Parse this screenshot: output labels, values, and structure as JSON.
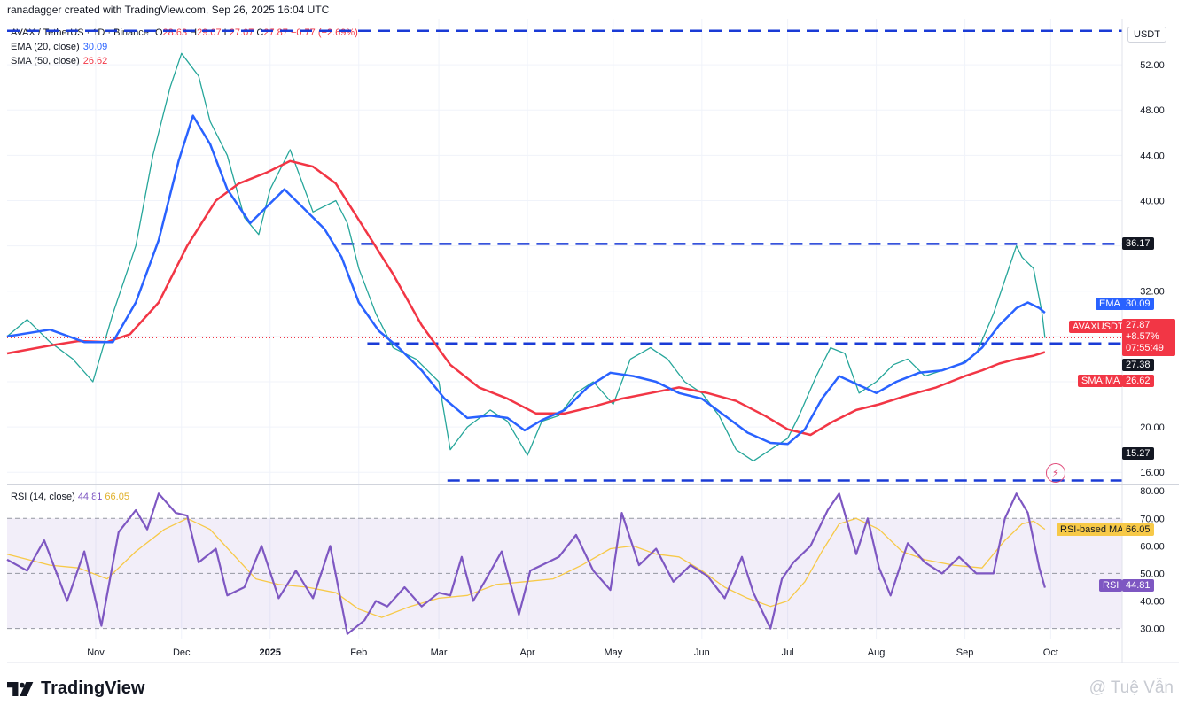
{
  "header": {
    "created_by": "ranadagger created with TradingView.com, Sep 26, 2025 16:04 UTC"
  },
  "symbol_legend": {
    "title": "AVAX / TetherUS · 1D · Binance",
    "o_label": "O",
    "o_value": "28.63",
    "h_label": "H",
    "h_value": "29.07",
    "l_label": "L",
    "l_value": "27.07",
    "c_label": "C",
    "c_value": "27.87",
    "change": "−0.77 (−2.69%)"
  },
  "ema_legend": {
    "label": "EMA (20, close)",
    "value": "30.09",
    "color": "#2962ff"
  },
  "sma_legend": {
    "label": "SMA (50, close)",
    "value": "26.62",
    "color": "#f23645"
  },
  "rsi_legend": {
    "label": "RSI (14, close)",
    "value": "44.81",
    "ma_value": "66.05",
    "color": "#7e57c2",
    "ma_color": "#f7c948"
  },
  "currency": "USDT",
  "price_tags": {
    "ema_label": "EMA",
    "ema_value": "30.09",
    "symbol_label": "AVAXUSDT",
    "symbol_price": "27.87",
    "symbol_change": "+8.57%",
    "countdown": "07:55:49",
    "sma_label": "SMA:MA",
    "sma_value": "26.62",
    "level_36": "36.17",
    "level_27": "27.38",
    "level_15": "15.27",
    "rsi_ma_label": "RSI-based MA",
    "rsi_ma_value": "66.05",
    "rsi_label": "RSI",
    "rsi_value": "44.81"
  },
  "logo_text": "TradingView",
  "watermark": "@ Tuệ Vẫn",
  "chart_data": [
    {
      "type": "line",
      "title": "AVAX / TetherUS · 1D · Binance",
      "x_axis_labels": [
        "Nov",
        "Dec",
        "2025",
        "Feb",
        "Mar",
        "Apr",
        "May",
        "Jun",
        "Jul",
        "Aug",
        "Sep",
        "Oct"
      ],
      "x_axis_label_index": [
        16,
        46,
        77,
        108,
        136,
        167,
        197,
        228,
        258,
        289,
        320,
        350
      ],
      "y_ticks": [
        16.0,
        20.0,
        24.0,
        28.0,
        32.0,
        36.0,
        40.0,
        44.0,
        48.0,
        52.0
      ],
      "y_tick_labels": [
        "16.00",
        "20.00",
        "",
        "",
        "32.00",
        "",
        "40.00",
        "44.00",
        "48.00",
        "52.00"
      ],
      "ylim": [
        15.0,
        56.0
      ],
      "x_range": [
        -15,
        375
      ],
      "horizontal_levels": [
        55.0,
        36.17,
        27.38,
        15.27
      ],
      "level_segments": [
        {
          "value": 55.0,
          "from": -15,
          "to": 375
        },
        {
          "value": 36.17,
          "from": 102,
          "to": 375
        },
        {
          "value": 27.38,
          "from": 111,
          "to": 375
        },
        {
          "value": 15.27,
          "from": 139,
          "to": 375
        }
      ],
      "last_price": 27.87,
      "close_series": {
        "name": "AVAXUSDT",
        "x": [
          -15,
          -8,
          0,
          8,
          15,
          22,
          30,
          36,
          42,
          46,
          52,
          56,
          62,
          68,
          73,
          77,
          84,
          92,
          100,
          104,
          108,
          114,
          120,
          128,
          136,
          140,
          146,
          154,
          160,
          167,
          172,
          178,
          184,
          190,
          197,
          203,
          210,
          216,
          222,
          228,
          234,
          240,
          246,
          252,
          258,
          262,
          268,
          273,
          278,
          283,
          289,
          295,
          300,
          306,
          312,
          318,
          324,
          330,
          334,
          338,
          340,
          344,
          347,
          348
        ],
        "values": [
          28.0,
          29.5,
          27.5,
          26.0,
          24.0,
          30.0,
          36.0,
          44.0,
          50.0,
          53.0,
          51.0,
          47.0,
          44.0,
          38.5,
          37.0,
          41.0,
          44.5,
          39.0,
          40.0,
          38.0,
          34.0,
          30.0,
          27.0,
          26.0,
          24.0,
          18.0,
          20.0,
          21.5,
          20.5,
          17.5,
          20.5,
          21.0,
          23.0,
          24.0,
          22.0,
          26.0,
          27.0,
          26.0,
          24.0,
          23.0,
          21.0,
          18.0,
          17.0,
          18.0,
          19.0,
          21.0,
          24.5,
          27.0,
          26.5,
          23.0,
          24.0,
          25.5,
          26.0,
          24.5,
          25.0,
          25.5,
          26.5,
          30.0,
          33.0,
          36.0,
          35.0,
          34.0,
          30.0,
          27.87
        ]
      },
      "series": [
        {
          "name": "EMA",
          "x": [
            -15,
            0,
            12,
            22,
            30,
            38,
            45,
            50,
            56,
            62,
            70,
            76,
            82,
            90,
            96,
            102,
            108,
            115,
            122,
            130,
            138,
            146,
            154,
            160,
            166,
            172,
            180,
            188,
            196,
            204,
            212,
            220,
            228,
            236,
            244,
            252,
            258,
            264,
            270,
            276,
            282,
            289,
            296,
            304,
            312,
            320,
            326,
            332,
            338,
            342,
            346,
            348
          ],
          "values": [
            28.0,
            28.6,
            27.5,
            27.5,
            31.0,
            36.5,
            43.5,
            47.5,
            45.0,
            41.0,
            38.0,
            39.5,
            41.0,
            39.0,
            37.5,
            35.0,
            31.0,
            28.5,
            27.0,
            25.0,
            22.5,
            20.8,
            21.0,
            20.8,
            19.7,
            20.6,
            21.5,
            23.5,
            24.8,
            24.5,
            24.0,
            23.0,
            22.5,
            21.0,
            19.5,
            18.6,
            18.5,
            19.8,
            22.5,
            24.5,
            23.8,
            23.0,
            24.0,
            24.8,
            25.0,
            25.7,
            27.0,
            29.0,
            30.5,
            31.0,
            30.5,
            30.09
          ]
        },
        {
          "name": "SMA",
          "x": [
            -15,
            0,
            10,
            20,
            28,
            38,
            48,
            58,
            66,
            76,
            84,
            92,
            100,
            110,
            120,
            130,
            140,
            150,
            160,
            170,
            180,
            190,
            200,
            210,
            220,
            230,
            240,
            250,
            258,
            266,
            274,
            282,
            290,
            300,
            310,
            320,
            326,
            332,
            338,
            344,
            348
          ],
          "values": [
            26.5,
            27.2,
            27.6,
            27.5,
            28.2,
            31.0,
            36.0,
            40.0,
            41.5,
            42.5,
            43.5,
            43.0,
            41.5,
            37.5,
            33.5,
            29.0,
            25.5,
            23.5,
            22.5,
            21.2,
            21.2,
            21.8,
            22.5,
            23.0,
            23.5,
            23.0,
            22.3,
            21.0,
            19.8,
            19.3,
            20.5,
            21.5,
            22.0,
            22.8,
            23.5,
            24.5,
            25.0,
            25.6,
            26.0,
            26.3,
            26.62
          ]
        }
      ]
    },
    {
      "type": "line",
      "title": "RSI (14, close)",
      "y_ticks": [
        30.0,
        40.0,
        50.0,
        60.0,
        70.0,
        80.0
      ],
      "y_tick_labels": [
        "30.00",
        "40.00",
        "50.00",
        "60.00",
        "70.00",
        "80.00"
      ],
      "ylim": [
        26.0,
        82.0
      ],
      "band": [
        30,
        70
      ],
      "x_range": [
        -15,
        375
      ],
      "series": [
        {
          "name": "RSI",
          "x": [
            -15,
            -8,
            -2,
            6,
            12,
            18,
            24,
            30,
            34,
            38,
            44,
            48,
            52,
            58,
            62,
            68,
            74,
            80,
            86,
            92,
            98,
            104,
            110,
            114,
            118,
            124,
            130,
            136,
            140,
            144,
            148,
            152,
            158,
            164,
            168,
            172,
            178,
            184,
            190,
            196,
            200,
            206,
            212,
            218,
            224,
            230,
            236,
            242,
            246,
            252,
            256,
            260,
            266,
            272,
            276,
            282,
            286,
            290,
            294,
            300,
            306,
            312,
            318,
            324,
            330,
            334,
            338,
            342,
            346,
            348
          ],
          "values": [
            55.0,
            51.0,
            62.0,
            40.0,
            58.0,
            31.0,
            65.0,
            73.0,
            66.0,
            79.0,
            72.0,
            71.0,
            54.0,
            59.0,
            42.0,
            45.0,
            60.0,
            41.0,
            51.0,
            41.0,
            60.0,
            28.0,
            33.0,
            40.0,
            38.0,
            45.0,
            38.0,
            43.0,
            42.0,
            56.0,
            40.0,
            47.0,
            58.0,
            35.0,
            51.0,
            53.0,
            56.0,
            64.0,
            51.0,
            44.0,
            72.0,
            53.0,
            59.0,
            47.0,
            53.0,
            49.0,
            41.0,
            56.0,
            43.0,
            30.0,
            48.0,
            54.0,
            60.0,
            73.0,
            79.0,
            57.0,
            70.0,
            52.0,
            42.0,
            61.0,
            54.0,
            50.0,
            56.0,
            50.0,
            50.0,
            70.0,
            79.0,
            72.0,
            52.0,
            44.81
          ]
        },
        {
          "name": "RSI-based MA",
          "x": [
            -15,
            0,
            10,
            20,
            30,
            40,
            48,
            56,
            64,
            72,
            80,
            90,
            100,
            108,
            116,
            126,
            136,
            146,
            156,
            166,
            176,
            186,
            196,
            204,
            212,
            220,
            228,
            236,
            244,
            252,
            258,
            264,
            270,
            276,
            282,
            290,
            298,
            306,
            316,
            326,
            334,
            340,
            344,
            348
          ],
          "values": [
            57.0,
            53.0,
            52.0,
            48.0,
            58.0,
            66.0,
            70.0,
            66.0,
            57.0,
            48.0,
            46.0,
            45.0,
            43.0,
            37.0,
            34.0,
            38.0,
            41.0,
            42.0,
            46.0,
            47.0,
            48.0,
            53.0,
            59.0,
            60.0,
            57.0,
            56.0,
            51.0,
            45.0,
            41.0,
            38.0,
            40.0,
            47.0,
            58.0,
            68.0,
            70.0,
            66.0,
            58.0,
            55.0,
            53.0,
            52.0,
            62.0,
            68.0,
            69.0,
            66.05
          ]
        }
      ]
    }
  ]
}
